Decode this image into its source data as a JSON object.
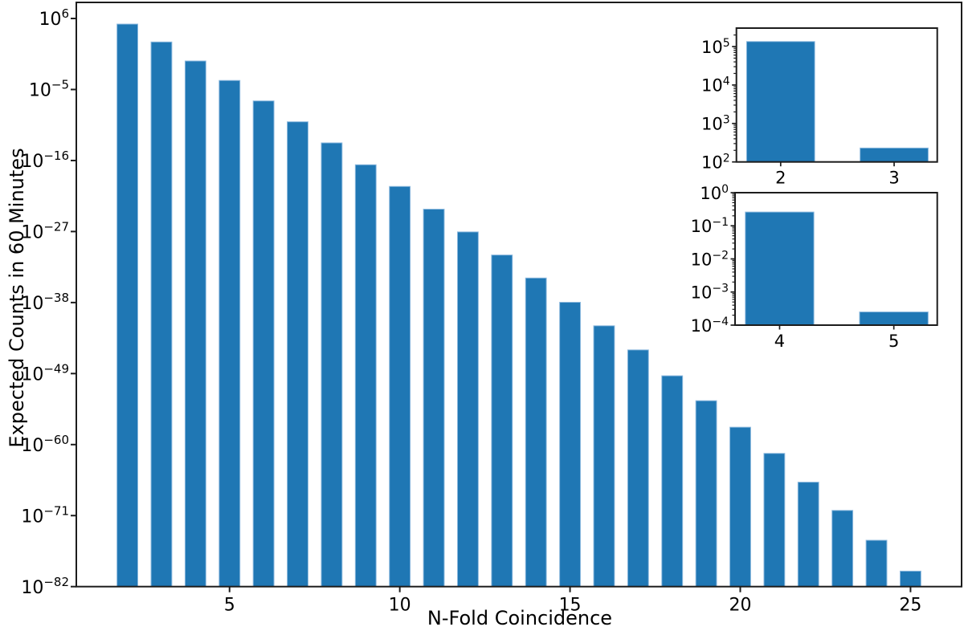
{
  "figure": {
    "background": "#ffffff",
    "bar_color": "#1f77b4",
    "bar_edge_color": "#8bb8de",
    "spine_color": "#1c1c1c"
  },
  "chart_data": [
    {
      "id": "main",
      "type": "bar",
      "title": "",
      "xlabel": "N-Fold Coincidence",
      "ylabel": "Expected Counts in 60 Minutes",
      "yscale": "log",
      "grid": false,
      "legend": "none",
      "x": [
        2,
        3,
        4,
        5,
        6,
        7,
        8,
        9,
        10,
        11,
        12,
        13,
        14,
        15,
        16,
        17,
        18,
        19,
        20,
        21,
        22,
        23,
        24,
        25
      ],
      "values": [
        135000.0,
        230.0,
        0.26,
        0.00025,
        1.7e-07,
        1e-10,
        5.4e-14,
        2.2e-17,
        9.6e-21,
        2.9e-24,
        8.7e-28,
        2.3e-31,
        6.3e-35,
        1.1e-38,
        2.5e-42,
        4.6e-46,
        4.5e-50,
        6.2e-54,
        4.9e-58,
        4.3e-62,
        1.5e-66,
        6.3e-71,
        1.5e-75,
        2.5e-80
      ],
      "ytick_exponents": [
        6,
        -5,
        -16,
        -27,
        -38,
        -49,
        -60,
        -71,
        -82
      ],
      "xticks": [
        5,
        10,
        15,
        20,
        25
      ],
      "xlim": [
        0.5,
        26.5
      ],
      "ylim_log": [
        -82,
        8.49
      ]
    },
    {
      "id": "inset-top",
      "type": "bar",
      "yscale": "log",
      "x": [
        2,
        3
      ],
      "values": [
        135000.0,
        230.0
      ],
      "ytick_exponents": [
        5,
        4,
        3,
        2
      ],
      "xticks": [
        2,
        3
      ],
      "xlim": [
        1.61,
        3.38
      ],
      "ylim_log": [
        2,
        5.48
      ]
    },
    {
      "id": "inset-bottom",
      "type": "bar",
      "yscale": "log",
      "x": [
        4,
        5
      ],
      "values": [
        0.26,
        0.00025
      ],
      "ytick_exponents": [
        0,
        -1,
        -2,
        -3,
        -4
      ],
      "xticks": [
        4,
        5
      ],
      "xlim": [
        3.61,
        5.38
      ],
      "ylim_log": [
        -4,
        0
      ]
    }
  ]
}
